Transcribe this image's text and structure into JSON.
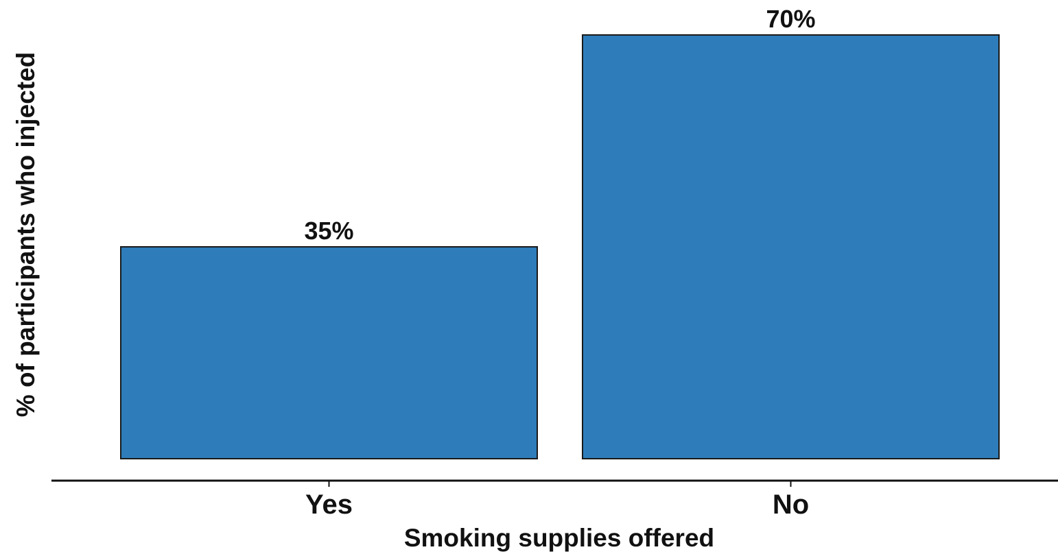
{
  "chart_data": {
    "type": "bar",
    "categories": [
      "Yes",
      "No"
    ],
    "values": [
      35,
      70
    ],
    "data_labels": [
      "35%",
      "70%"
    ],
    "title": "",
    "xlabel": "Smoking supplies offered",
    "ylabel": "% of participants who injected",
    "ylim": [
      0,
      70
    ],
    "grid": false,
    "legend": "none",
    "bar_color": "#2e7dba",
    "bar_edge_color": "#1a1a1a"
  }
}
